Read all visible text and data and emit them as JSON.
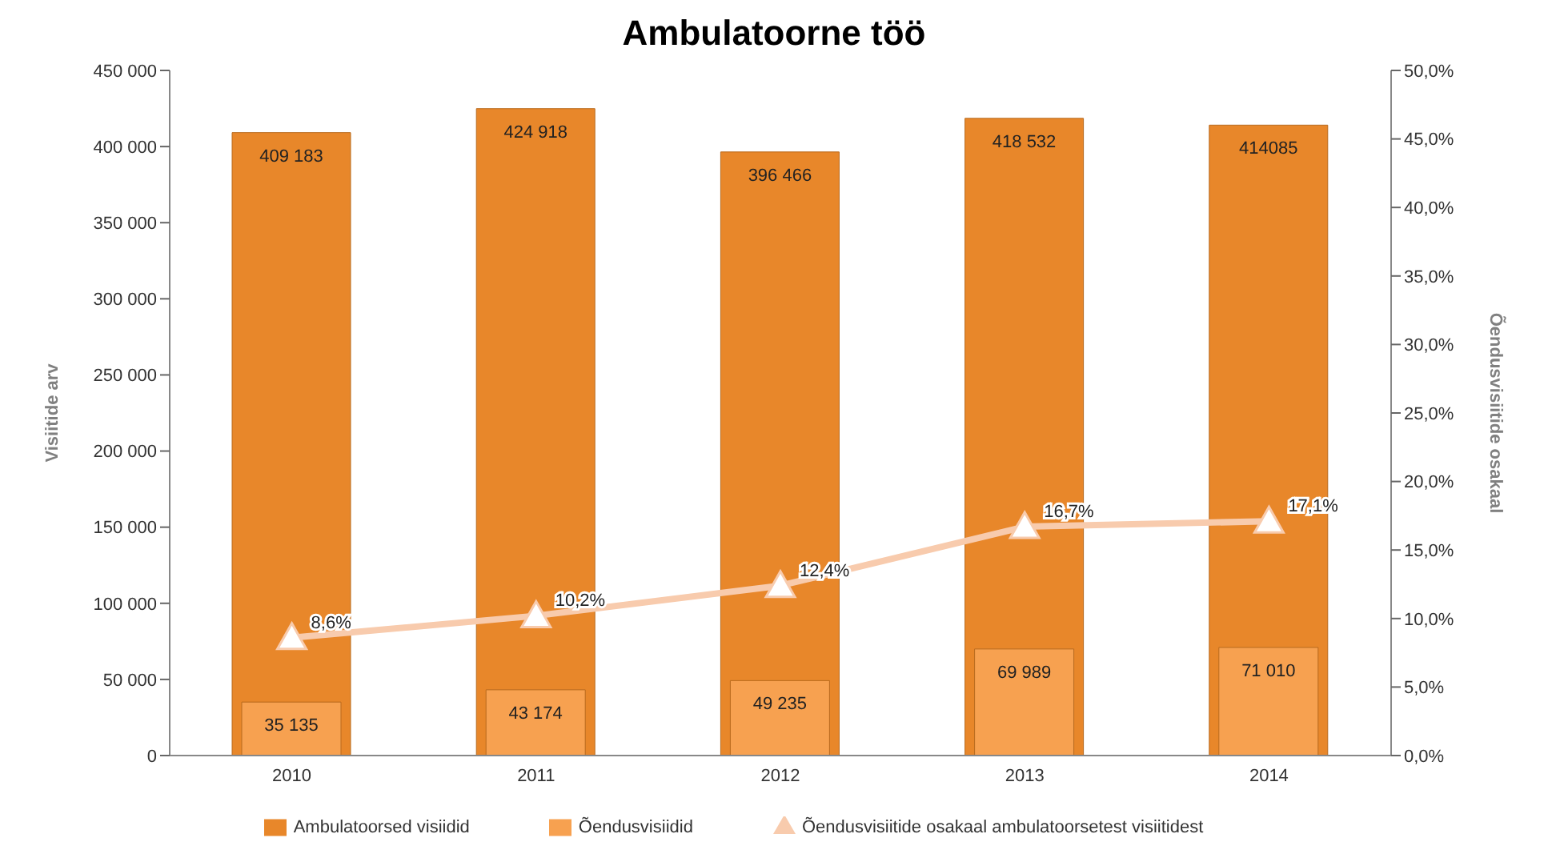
{
  "chart_data": {
    "type": "bar",
    "title": "Ambulatoorne töö",
    "ylabel": "Visiitide arv",
    "y2label": "Õendusvisiitide osakaal",
    "categories": [
      "2010",
      "2011",
      "2012",
      "2013",
      "2014"
    ],
    "series": [
      {
        "name": "Ambulatoorsed  visiidid",
        "color": "#e8872a",
        "values": [
          409183,
          424918,
          396466,
          418532,
          414085
        ],
        "value_labels": [
          "409 183",
          "424 918",
          "396 466",
          "418 532",
          "414085"
        ]
      },
      {
        "name": "Õendusvisiidid",
        "color": "#f7a150",
        "values": [
          35135,
          43174,
          49235,
          69989,
          71010
        ],
        "value_labels": [
          "35 135",
          "43 174",
          "49 235",
          "69 989",
          "71 010"
        ]
      },
      {
        "name": "Õendusvisiitide osakaal ambulatoorsetest visiitidest",
        "type": "line",
        "axis": "y2",
        "color": "#f8cbad",
        "marker": "triangle",
        "values": [
          8.6,
          10.2,
          12.4,
          16.7,
          17.1
        ],
        "value_labels": [
          "8,6%",
          "10,2%",
          "12,4%",
          "16,7%",
          "17,1%"
        ]
      }
    ],
    "ylim": [
      0,
      450000
    ],
    "yticks": [
      {
        "value": 0,
        "label": "0"
      },
      {
        "value": 50000,
        "label": "50 000"
      },
      {
        "value": 100000,
        "label": "100 000"
      },
      {
        "value": 150000,
        "label": "150 000"
      },
      {
        "value": 200000,
        "label": "200 000"
      },
      {
        "value": 250000,
        "label": "250 000"
      },
      {
        "value": 300000,
        "label": "300 000"
      },
      {
        "value": 350000,
        "label": "350 000"
      },
      {
        "value": 400000,
        "label": "400 000"
      },
      {
        "value": 450000,
        "label": "450 000"
      }
    ],
    "y2lim": [
      0,
      50
    ],
    "y2ticks": [
      {
        "value": 0,
        "label": "0,0%"
      },
      {
        "value": 5,
        "label": "5,0%"
      },
      {
        "value": 10,
        "label": "10,0%"
      },
      {
        "value": 15,
        "label": "15,0%"
      },
      {
        "value": 20,
        "label": "20,0%"
      },
      {
        "value": 25,
        "label": "25,0%"
      },
      {
        "value": 30,
        "label": "30,0%"
      },
      {
        "value": 35,
        "label": "35,0%"
      },
      {
        "value": 40,
        "label": "40,0%"
      },
      {
        "value": 45,
        "label": "45,0%"
      },
      {
        "value": 50,
        "label": "50,0%"
      }
    ],
    "grid": false,
    "legend": "bottom"
  }
}
